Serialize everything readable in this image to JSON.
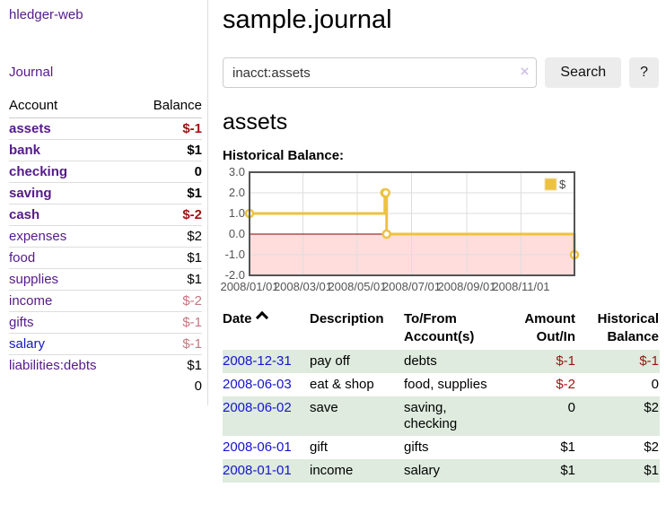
{
  "app": {
    "title": "hledger-web",
    "nav_journal_label": "Journal"
  },
  "sidebar": {
    "headers": {
      "account": "Account",
      "balance": "Balance"
    },
    "accounts": [
      {
        "name": "assets",
        "balance": "$-1",
        "depth": 1,
        "bold": true,
        "link": "purple",
        "tone": "neg-strong"
      },
      {
        "name": "bank",
        "balance": "$1",
        "depth": 2,
        "bold": true,
        "link": "purple",
        "tone": "normal"
      },
      {
        "name": "checking",
        "balance": "0",
        "depth": 3,
        "bold": true,
        "link": "purple",
        "tone": "normal"
      },
      {
        "name": "saving",
        "balance": "$1",
        "depth": 3,
        "bold": true,
        "link": "purple",
        "tone": "normal"
      },
      {
        "name": "cash",
        "balance": "$-2",
        "depth": 2,
        "bold": true,
        "link": "purple",
        "tone": "neg-strong"
      },
      {
        "name": "expenses",
        "balance": "$2",
        "depth": 1,
        "bold": false,
        "link": "purple",
        "tone": "normal"
      },
      {
        "name": "food",
        "balance": "$1",
        "depth": 2,
        "bold": false,
        "link": "purple",
        "tone": "normal"
      },
      {
        "name": "supplies",
        "balance": "$1",
        "depth": 2,
        "bold": false,
        "link": "purple",
        "tone": "normal"
      },
      {
        "name": "income",
        "balance": "$-2",
        "depth": 1,
        "bold": false,
        "link": "purple",
        "tone": "neg-muted"
      },
      {
        "name": "gifts",
        "balance": "$-1",
        "depth": 2,
        "bold": false,
        "link": "purple",
        "tone": "neg-muted"
      },
      {
        "name": "salary",
        "balance": "$-1",
        "depth": 2,
        "bold": false,
        "link": "blue",
        "tone": "neg-muted"
      },
      {
        "name": "liabilities:debts",
        "balance": "$1",
        "depth": 1,
        "bold": false,
        "link": "purple",
        "tone": "normal"
      }
    ],
    "total": "0"
  },
  "header": {
    "journal_title": "sample.journal"
  },
  "search": {
    "value": "inacct:assets",
    "clear_icon": "×",
    "button_label": "Search",
    "help_label": "?"
  },
  "account_page": {
    "title": "assets",
    "chart_heading": "Historical Balance:"
  },
  "chart_data": {
    "type": "line",
    "style": "step",
    "title": "Historical Balance",
    "series": [
      {
        "name": "$",
        "color": "#edc240",
        "points": [
          [
            "2008-01-01",
            1
          ],
          [
            "2008-06-01",
            2
          ],
          [
            "2008-06-02",
            2
          ],
          [
            "2008-06-03",
            0
          ],
          [
            "2008-12-31",
            -1
          ]
        ]
      }
    ],
    "x_start": "2008-01-01",
    "x_end": "2008-12-31",
    "x_ticks": [
      "2008/01/01",
      "2008/03/01",
      "2008/05/01",
      "2008/07/01",
      "2008/09/01",
      "2008/11/01"
    ],
    "y_ticks": [
      3.0,
      2.0,
      1.0,
      0.0,
      -1.0,
      -2.0
    ],
    "ylim": [
      -2,
      3
    ],
    "grid": true,
    "legend_position": "top-right",
    "colors": {
      "line": "#edc240",
      "marker_fill": "#ffffff",
      "negative_region": "#ffdddd",
      "zero_line": "#8b0000",
      "grid_line": "#dddddd",
      "plot_border": "#545454",
      "tick_label": "#545454"
    }
  },
  "register": {
    "headers": {
      "date": "Date",
      "description": "Description",
      "account": "To/From Account(s)",
      "amount": "Amount Out/In",
      "balance": "Historical Balance"
    },
    "rows": [
      {
        "date": "2008-12-31",
        "description": "pay off",
        "account": "debts",
        "amount": "$-1",
        "balance": "$-1"
      },
      {
        "date": "2008-06-03",
        "description": "eat & shop",
        "account": "food, supplies",
        "amount": "$-2",
        "balance": "0"
      },
      {
        "date": "2008-06-02",
        "description": "save",
        "account": "saving, checking",
        "amount": "0",
        "balance": "$2"
      },
      {
        "date": "2008-06-01",
        "description": "gift",
        "account": "gifts",
        "amount": "$1",
        "balance": "$2"
      },
      {
        "date": "2008-01-01",
        "description": "income",
        "account": "salary",
        "amount": "$1",
        "balance": "$1"
      }
    ]
  },
  "colors": {
    "link_purple": "#551a8b",
    "link_blue": "#1515cc",
    "negative_strong": "#9d1212",
    "negative_muted": "#c2777f",
    "row_stripe_green": "#deebde",
    "button_bg": "#ececec"
  }
}
